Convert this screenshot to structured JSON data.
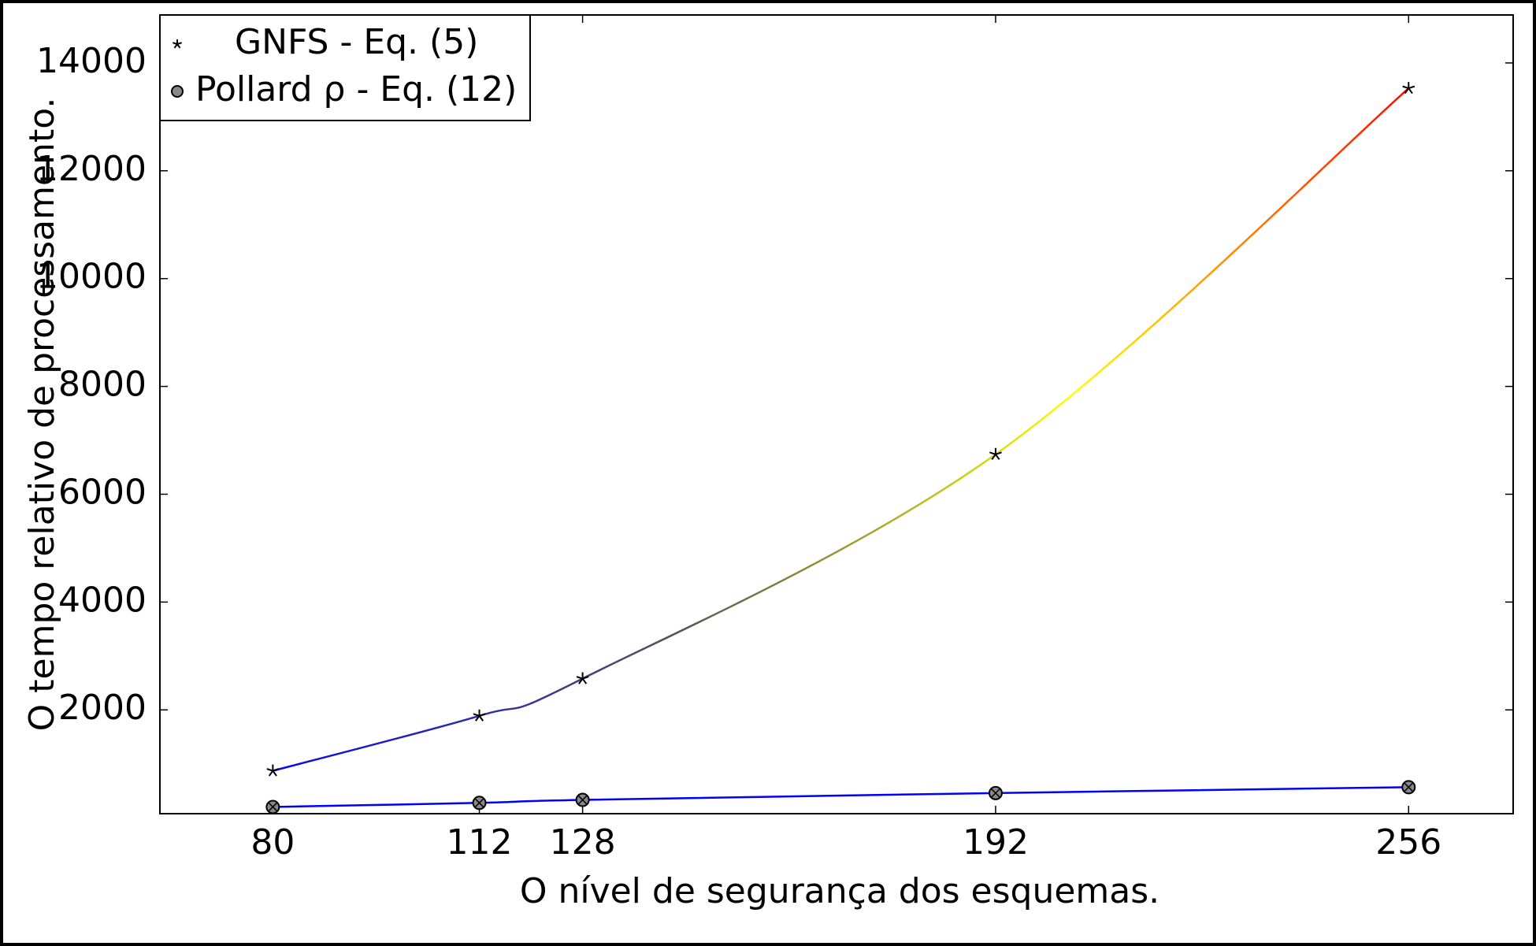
{
  "chart_data": {
    "type": "line",
    "x_label": "O nível de segurança dos esquemas.",
    "y_label": "O tempo relativo de processamento.",
    "x": [
      80,
      112,
      128,
      192,
      256
    ],
    "series": [
      {
        "name": "GNFS - Eq. (5)",
        "color": [
          "#0000ff",
          "#555555",
          "#ffff00",
          "#ff0000"
        ],
        "marker": "star",
        "values": [
          870,
          1890,
          2580,
          6740,
          13530
        ]
      },
      {
        "name": "Pollard ρ - Eq. (12)",
        "color": "#0000ff",
        "marker": "circle-x",
        "values": [
          200,
          275,
          330,
          457,
          566
        ]
      }
    ],
    "xlim": [
      62.5,
      272.2
    ],
    "ylim": [
      75,
      14890
    ],
    "xticks": [
      80,
      112,
      128,
      192,
      256
    ],
    "yticks": [
      2000,
      4000,
      6000,
      8000,
      10000,
      12000,
      14000
    ],
    "grid": false,
    "legend": "upper left"
  }
}
